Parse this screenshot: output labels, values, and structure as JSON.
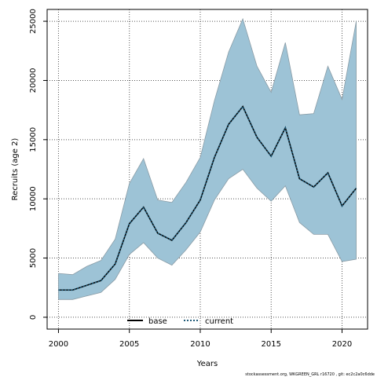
{
  "chart_data": {
    "type": "area",
    "xlabel": "Years",
    "ylabel": "Recruits (age 2)",
    "xlim": [
      1999.2,
      2021.8
    ],
    "ylim": [
      -1000,
      26000
    ],
    "xticks": [
      2000,
      2005,
      2010,
      2015,
      2020
    ],
    "yticks": [
      0,
      5000,
      10000,
      15000,
      20000,
      25000
    ],
    "grid": true,
    "legend": "bottom-center",
    "x": [
      2000,
      2001,
      2002,
      2003,
      2004,
      2005,
      2006,
      2007,
      2008,
      2009,
      2010,
      2011,
      2012,
      2013,
      2014,
      2015,
      2016,
      2017,
      2018,
      2019,
      2020,
      2021
    ],
    "band": {
      "color": "#9dc3d6",
      "lower": [
        1500,
        1500,
        1800,
        2100,
        3200,
        5300,
        6300,
        5000,
        4400,
        5700,
        7200,
        9900,
        11700,
        12500,
        10900,
        9800,
        11100,
        8000,
        7000,
        7000,
        4700,
        4900
      ],
      "upper": [
        3700,
        3600,
        4300,
        4800,
        6600,
        11300,
        13400,
        9900,
        9700,
        11400,
        13500,
        18300,
        22400,
        25200,
        21200,
        19000,
        23200,
        17100,
        17200,
        21200,
        18400,
        25000
      ]
    },
    "series": [
      {
        "name": "base",
        "color": "#000000",
        "dash": "solid",
        "values": [
          2300,
          2300,
          2700,
          3100,
          4500,
          7900,
          9300,
          7100,
          6500,
          8000,
          9900,
          13500,
          16300,
          17800,
          15200,
          13600,
          16000,
          11700,
          11000,
          12200,
          9400,
          10900
        ]
      },
      {
        "name": "current",
        "color": "#1f5a78",
        "dash": "dashed",
        "values": [
          2300,
          2300,
          2700,
          3100,
          4500,
          7900,
          9300,
          7100,
          6500,
          8000,
          9900,
          13500,
          16300,
          17800,
          15200,
          13600,
          16000,
          11700,
          11000,
          12200,
          9400,
          10900
        ]
      }
    ]
  },
  "footer": "stockassessment.org, WKGREEN_GRL r16720 , git: ec2c2a0c6dde"
}
